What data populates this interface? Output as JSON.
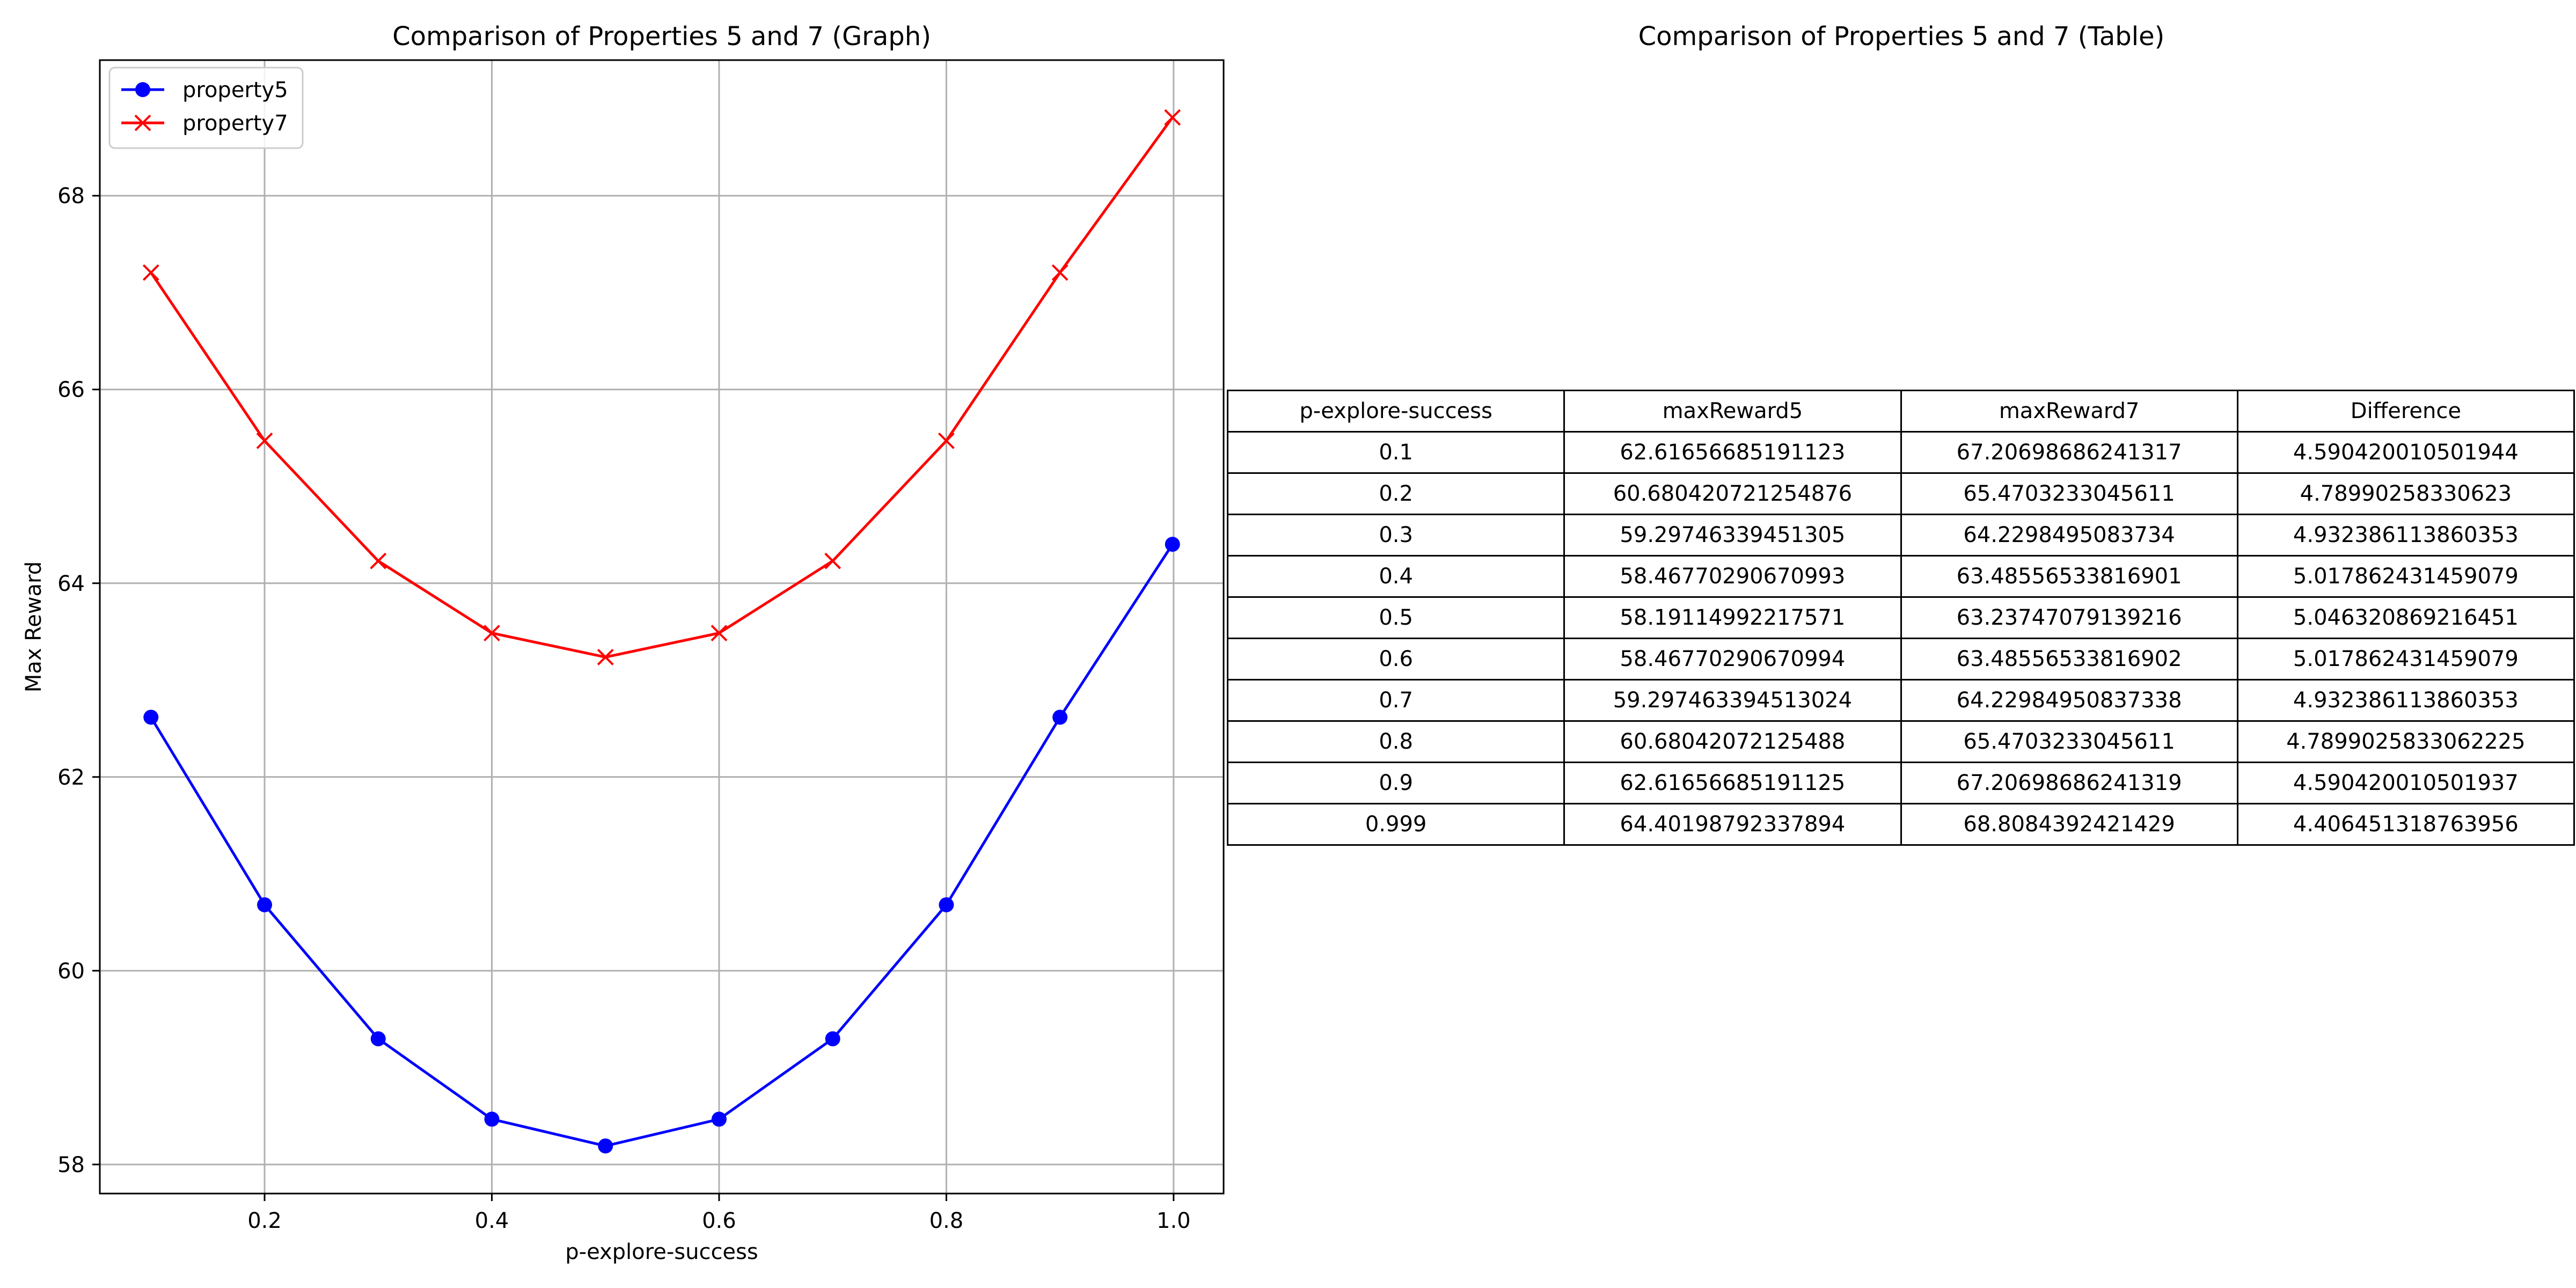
{
  "chart_data": [
    {
      "type": "line",
      "title": "Comparison of Properties 5 and 7 (Graph)",
      "xlabel": "p-explore-success",
      "ylabel": "Max Reward",
      "xlim": [
        0.055,
        1.044
      ],
      "ylim": [
        57.7,
        69.4
      ],
      "xticks": [
        0.2,
        0.4,
        0.6,
        0.8,
        1.0
      ],
      "xtick_labels": [
        "0.2",
        "0.4",
        "0.6",
        "0.8",
        "1.0"
      ],
      "yticks": [
        58,
        60,
        62,
        64,
        66,
        68
      ],
      "ytick_labels": [
        "58",
        "60",
        "62",
        "64",
        "66",
        "68"
      ],
      "grid": true,
      "legend_position": "top-left",
      "x": [
        0.1,
        0.2,
        0.3,
        0.4,
        0.5,
        0.6,
        0.7,
        0.8,
        0.9,
        0.999
      ],
      "series": [
        {
          "name": "property5",
          "color": "#0000ff",
          "marker": "circle",
          "values": [
            62.61656685191123,
            60.680420721254876,
            59.29746339451305,
            58.46770290670993,
            58.19114992217571,
            58.46770290670994,
            59.297463394513024,
            60.68042072125488,
            62.61656685191125,
            64.40198792337894
          ]
        },
        {
          "name": "property7",
          "color": "#ff0000",
          "marker": "x",
          "values": [
            67.20698686241317,
            65.4703233045611,
            64.2298495083734,
            63.48556533816901,
            63.23747079139216,
            63.48556533816902,
            64.22984950837338,
            65.4703233045611,
            67.20698686241319,
            68.8084392421429
          ]
        }
      ]
    },
    {
      "type": "table",
      "title": "Comparison of Properties 5 and 7 (Table)",
      "columns": [
        "p-explore-success",
        "maxReward5",
        "maxReward7",
        "Difference"
      ],
      "rows": [
        [
          "0.1",
          "62.61656685191123",
          "67.20698686241317",
          "4.590420010501944"
        ],
        [
          "0.2",
          "60.680420721254876",
          "65.4703233045611",
          "4.78990258330623"
        ],
        [
          "0.3",
          "59.29746339451305",
          "64.2298495083734",
          "4.932386113860353"
        ],
        [
          "0.4",
          "58.46770290670993",
          "63.48556533816901",
          "5.017862431459079"
        ],
        [
          "0.5",
          "58.19114992217571",
          "63.23747079139216",
          "5.046320869216451"
        ],
        [
          "0.6",
          "58.46770290670994",
          "63.48556533816902",
          "5.017862431459079"
        ],
        [
          "0.7",
          "59.297463394513024",
          "64.22984950837338",
          "4.932386113860353"
        ],
        [
          "0.8",
          "60.68042072125488",
          "65.4703233045611",
          "4.7899025833062225"
        ],
        [
          "0.9",
          "62.61656685191125",
          "67.20698686241319",
          "4.590420010501937"
        ],
        [
          "0.999",
          "64.40198792337894",
          "68.8084392421429",
          "4.406451318763956"
        ]
      ]
    }
  ]
}
